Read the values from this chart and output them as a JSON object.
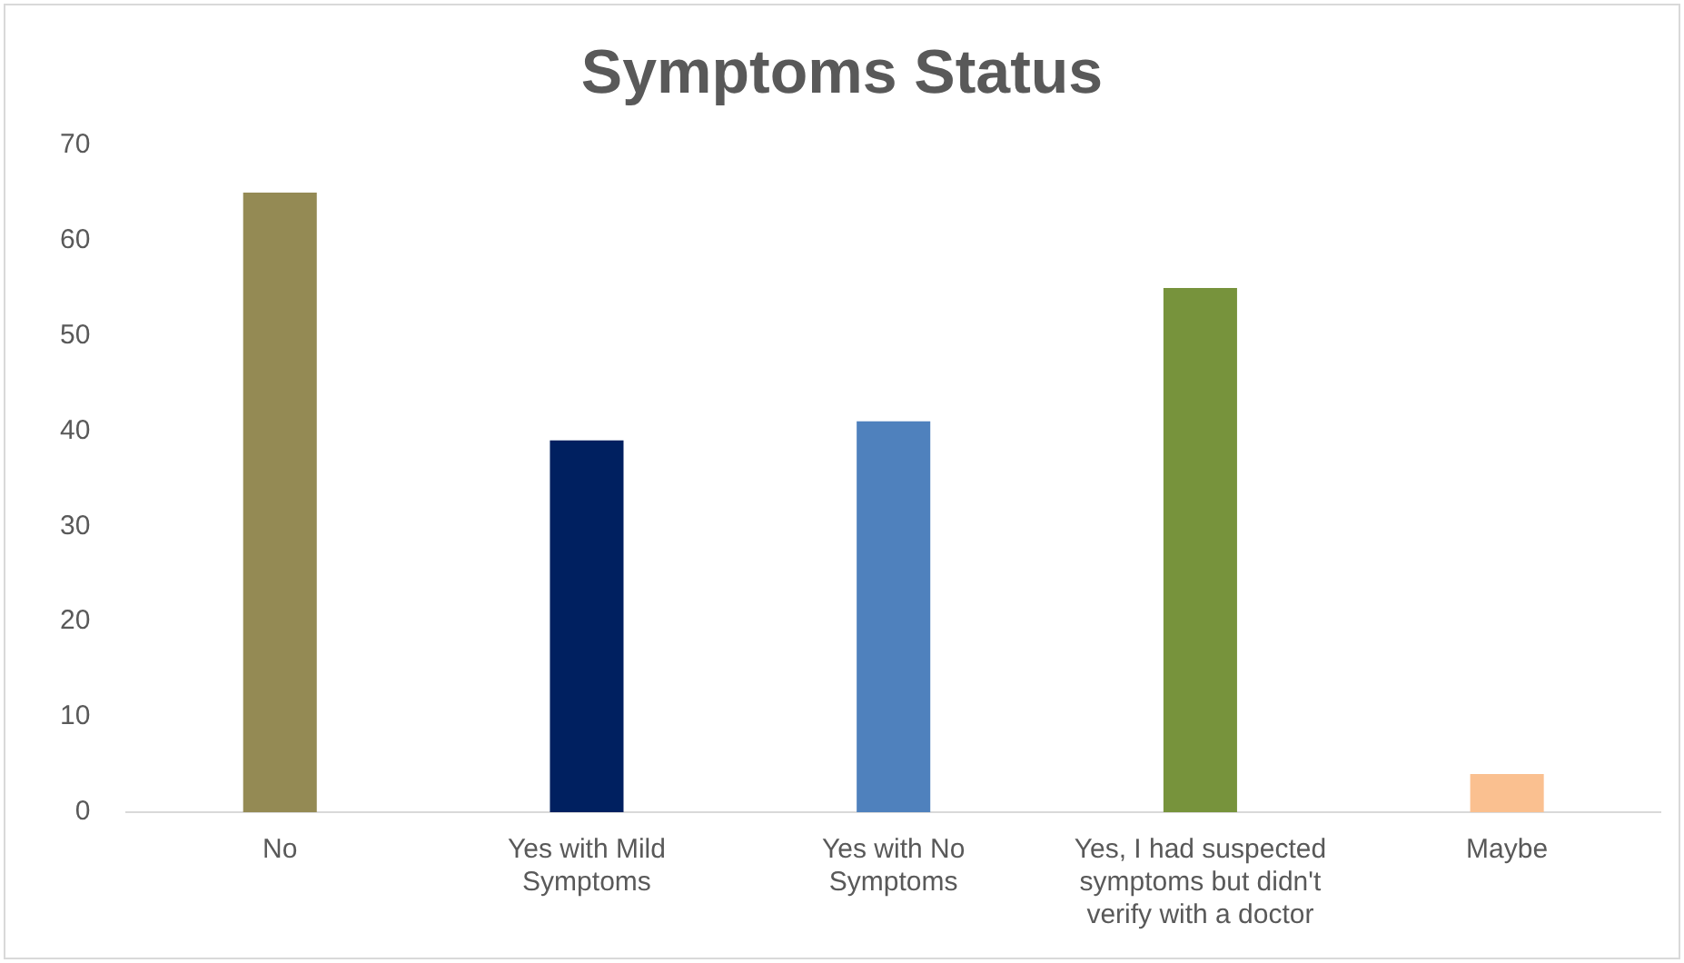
{
  "chart_data": {
    "type": "bar",
    "title": "Symptoms Status",
    "categories": [
      "No",
      "Yes with Mild Symptoms",
      "Yes with No Symptoms",
      "Yes, I had suspected symptoms but didn't verify with a doctor",
      "Maybe"
    ],
    "values": [
      65,
      39,
      41,
      55,
      4
    ],
    "colors": [
      "#948a54",
      "#002060",
      "#4f81bd",
      "#77933c",
      "#fac090"
    ],
    "ylim": [
      0,
      70
    ],
    "yticks": [
      0,
      10,
      20,
      30,
      40,
      50,
      60,
      70
    ],
    "grid": false,
    "legend": false
  }
}
